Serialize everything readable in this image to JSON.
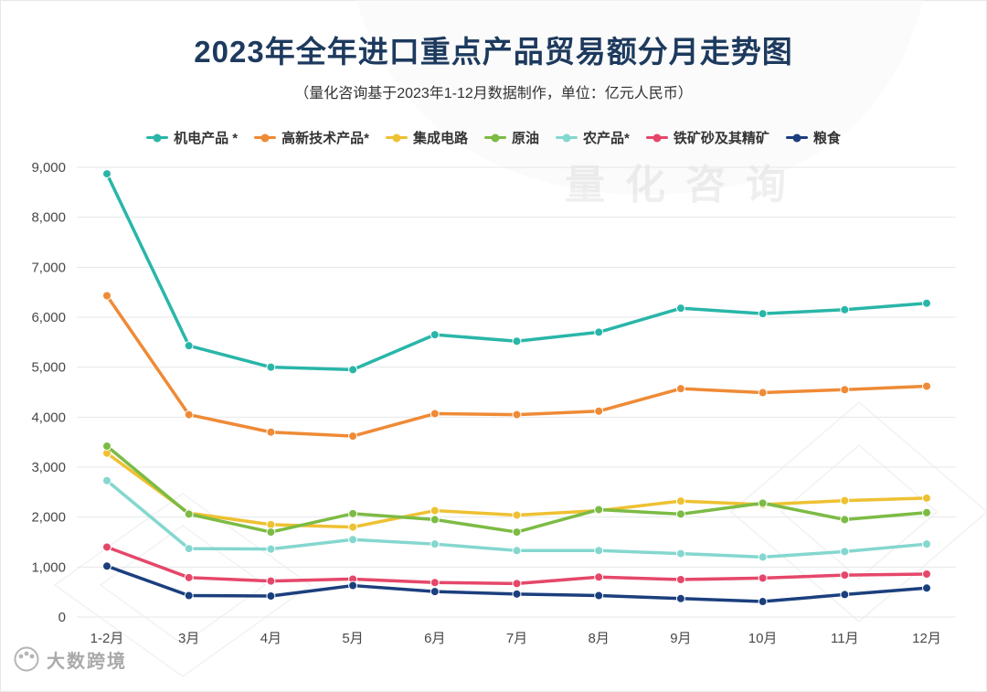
{
  "page": {
    "watermark": "量化咨询",
    "footer_logo_text": "大数跨境"
  },
  "chart_data": {
    "type": "line",
    "title": "2023年全年进口重点产品贸易额分月走势图",
    "subtitle": "（量化咨询基于2023年1-12月数据制作，单位：亿元人民币）",
    "categories": [
      "1-2月",
      "3月",
      "4月",
      "5月",
      "6月",
      "7月",
      "8月",
      "9月",
      "10月",
      "11月",
      "12月"
    ],
    "series": [
      {
        "name": "机电产品 *",
        "color": "#29b6a8",
        "values": [
          8870,
          5430,
          5000,
          4950,
          5650,
          5520,
          5700,
          6180,
          6070,
          6150,
          6280
        ]
      },
      {
        "name": "高新技术产品*",
        "color": "#ef8a36",
        "values": [
          6430,
          4050,
          3700,
          3620,
          4070,
          4050,
          4120,
          4570,
          4490,
          4550,
          4620
        ]
      },
      {
        "name": "集成电路",
        "color": "#eec132",
        "values": [
          3280,
          2080,
          1850,
          1800,
          2130,
          2040,
          2130,
          2320,
          2250,
          2330,
          2380
        ]
      },
      {
        "name": "原油",
        "color": "#7cbb44",
        "values": [
          3420,
          2060,
          1700,
          2070,
          1950,
          1700,
          2150,
          2060,
          2280,
          1950,
          2090
        ]
      },
      {
        "name": "农产品*",
        "color": "#84d7cf",
        "values": [
          2730,
          1370,
          1360,
          1550,
          1460,
          1330,
          1330,
          1270,
          1200,
          1310,
          1460
        ]
      },
      {
        "name": "铁矿砂及其精矿",
        "color": "#e5476a",
        "values": [
          1400,
          790,
          720,
          760,
          690,
          670,
          800,
          750,
          780,
          840,
          860
        ]
      },
      {
        "name": "粮食",
        "color": "#1b3f7e",
        "values": [
          1020,
          430,
          420,
          630,
          510,
          460,
          430,
          370,
          310,
          450,
          580
        ]
      }
    ],
    "xlabel": "",
    "ylabel": "",
    "ylim": [
      0,
      9000
    ],
    "ytick_step": 1000,
    "grid": true,
    "legend_position": "top",
    "unit": "亿元人民币"
  }
}
